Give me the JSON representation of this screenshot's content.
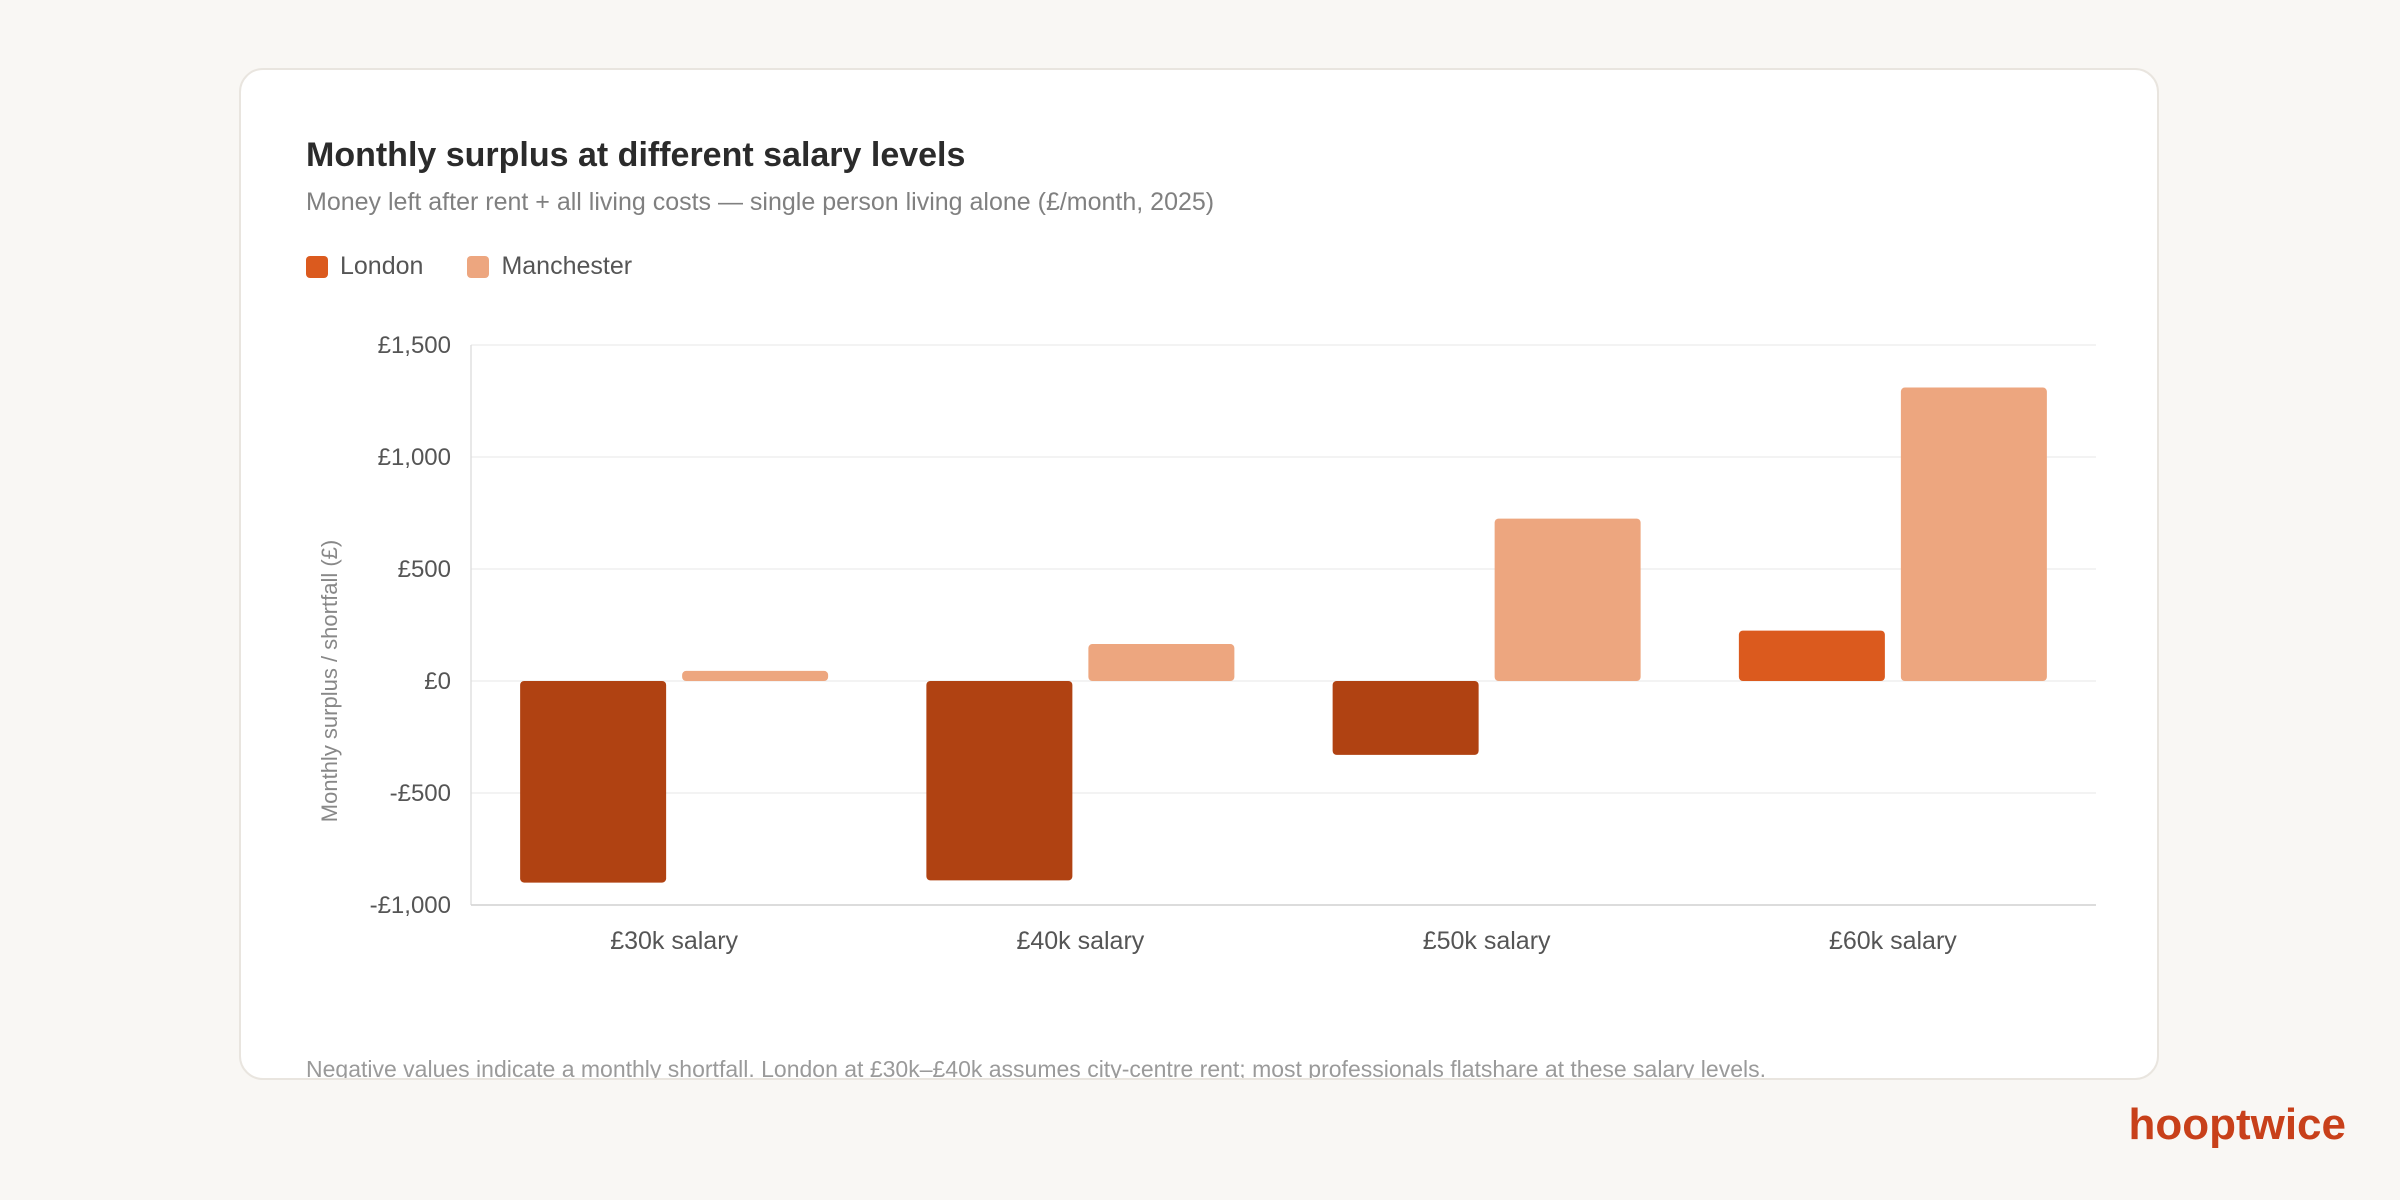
{
  "colors": {
    "page_background": "#f9f7f4",
    "london": "#b04212",
    "london_positive": "#db5a1e",
    "manchester": "#eda67f",
    "brand": "#c8401a"
  },
  "legend": [
    {
      "label": "London",
      "color": "#db5a1e"
    },
    {
      "label": "Manchester",
      "color": "#eda67f"
    }
  ],
  "chart_data": {
    "type": "bar",
    "title": "Monthly surplus at different salary levels",
    "subtitle": "Money left after rent + all living costs — single person living alone (£/month, 2025)",
    "xlabel": "",
    "ylabel": "Monthly surplus / shortfall (£)",
    "categories": [
      "£30k salary",
      "£40k salary",
      "£50k salary",
      "£60k salary"
    ],
    "series": [
      {
        "name": "London",
        "values": [
          -900,
          -890,
          -330,
          225
        ]
      },
      {
        "name": "Manchester",
        "values": [
          45,
          165,
          725,
          1310
        ]
      }
    ],
    "ylim": [
      -1000,
      1500
    ],
    "yticks": [
      -1000,
      -500,
      0,
      500,
      1000,
      1500
    ],
    "ytick_labels": [
      "-£1,000",
      "-£500",
      "£0",
      "£500",
      "£1,000",
      "£1,500"
    ],
    "grid": true,
    "legend_position": "top-left",
    "note": "Negative values indicate a monthly shortfall. London at £30k–£40k assumes city-centre rent; most professionals flatshare at these salary levels."
  },
  "brand": {
    "name": "hooptwice"
  }
}
